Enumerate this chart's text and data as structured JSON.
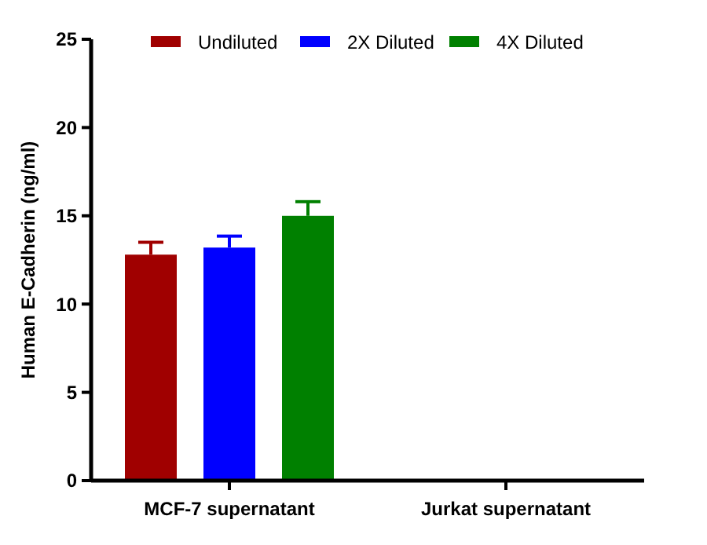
{
  "chart_data": {
    "type": "bar",
    "ylabel": "Human E-Cadherin (ng/ml)",
    "categories": [
      "MCF-7 supernatant",
      "Jurkat supernatant"
    ],
    "series": [
      {
        "name": "Undiluted",
        "color": "#a00000",
        "values": [
          12.8,
          0
        ],
        "errors": [
          [
            12.8,
            13.5
          ],
          null
        ]
      },
      {
        "name": "2X Diluted",
        "color": "#0000ff",
        "values": [
          13.2,
          0
        ],
        "errors": [
          [
            13.2,
            13.85
          ],
          null
        ]
      },
      {
        "name": "4X Diluted",
        "color": "#008000",
        "values": [
          15.0,
          0
        ],
        "errors": [
          [
            15.0,
            15.8
          ],
          null
        ]
      }
    ],
    "ylim": [
      0,
      25
    ],
    "yticks": [
      0,
      5,
      10,
      15,
      20,
      25
    ],
    "grid": false,
    "legend": "top"
  }
}
